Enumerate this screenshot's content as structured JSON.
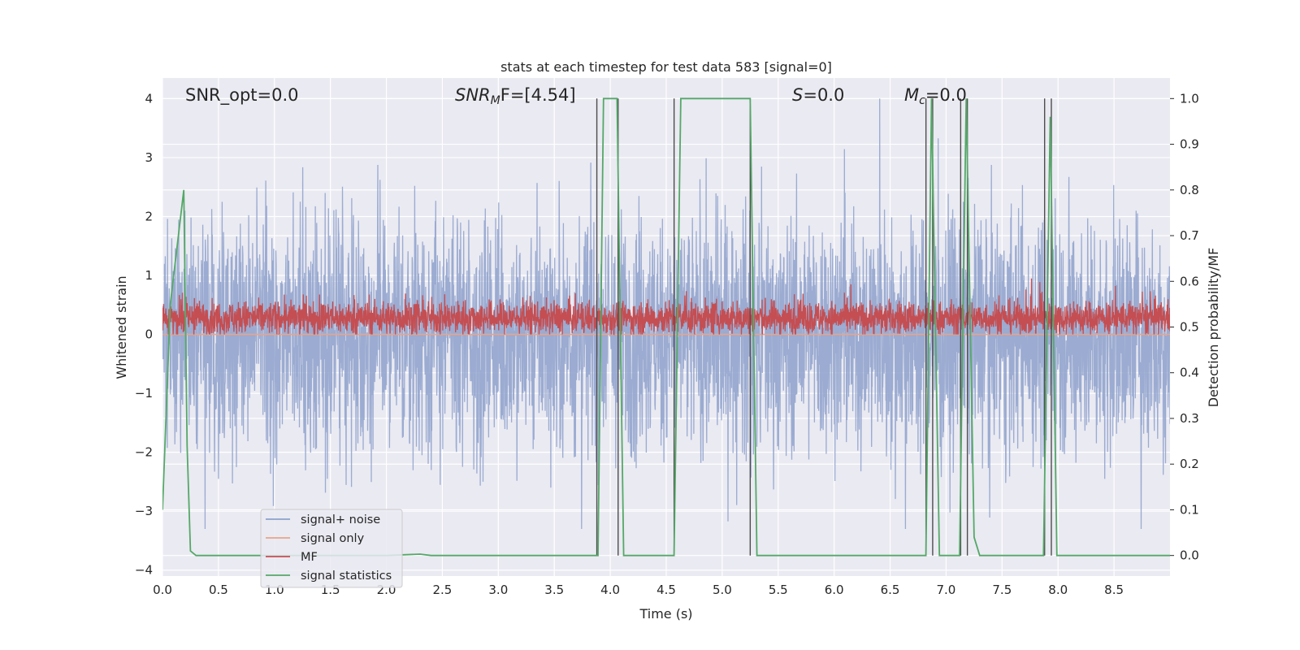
{
  "chart_data": {
    "type": "line",
    "title": "stats at each timestep for test data 583 [signal=0]",
    "xlabel": "Time (s)",
    "ylabel": "Whitened strain",
    "y2label": "Detection probability/MF",
    "xlim": [
      0,
      9
    ],
    "ylim": [
      -4.1,
      4.35
    ],
    "y2lim": [
      -0.045,
      1.045
    ],
    "grid": true,
    "legend_position": "lower-left",
    "x_ticks": [
      "0.0",
      "0.5",
      "1.0",
      "1.5",
      "2.0",
      "2.5",
      "3.0",
      "3.5",
      "4.0",
      "4.5",
      "5.0",
      "5.5",
      "6.0",
      "6.5",
      "7.0",
      "7.5",
      "8.0",
      "8.5"
    ],
    "y_ticks": [
      "−4",
      "−3",
      "−2",
      "−1",
      "0",
      "1",
      "2",
      "3",
      "4"
    ],
    "y2_ticks": [
      "0.0",
      "0.1",
      "0.2",
      "0.3",
      "0.4",
      "0.5",
      "0.6",
      "0.7",
      "0.8",
      "0.9",
      "1.0"
    ],
    "annotations": {
      "snr_opt": "SNR_opt=0.0",
      "snr_mf_main": "SNR",
      "snr_mf_sub": "M",
      "snr_mf_rest": "F=[4.54]",
      "s_main": "S",
      "s_rest": "=0.0",
      "mc_main": "M",
      "mc_sub": "c",
      "mc_rest": "=0.0"
    },
    "series": [
      {
        "name": "signal+ noise",
        "color": "#8da0cb",
        "kind": "noise",
        "y_range_approx": [
          -3.3,
          4.0
        ]
      },
      {
        "name": "signal only",
        "color": "#e8a48a",
        "kind": "constant",
        "y_value": 0.0
      },
      {
        "name": "MF",
        "color": "#c44e52",
        "kind": "noise",
        "y_range_approx": [
          0.0,
          0.95
        ]
      },
      {
        "name": "signal statistics",
        "color": "#55a868",
        "axis": "right",
        "x": [
          0.0,
          0.07,
          0.19,
          0.22,
          0.25,
          0.3,
          2.0,
          2.3,
          2.4,
          3.89,
          3.94,
          4.06,
          4.12,
          4.57,
          4.63,
          5.25,
          5.31,
          6.82,
          6.87,
          6.94,
          7.12,
          7.18,
          7.25,
          7.3,
          7.87,
          7.93,
          7.99,
          9.0
        ],
        "y": [
          0.1,
          0.55,
          0.8,
          0.24,
          0.01,
          0.0,
          0.0,
          0.003,
          0.0,
          0.0,
          1.0,
          1.0,
          0.0,
          0.0,
          1.0,
          1.0,
          0.0,
          0.0,
          1.0,
          0.0,
          0.0,
          1.0,
          0.04,
          0.0,
          0.0,
          0.96,
          0.0,
          0.0
        ]
      }
    ],
    "vertical_markers_x": [
      3.88,
      4.07,
      4.57,
      5.25,
      6.82,
      6.88,
      7.13,
      7.19,
      7.88,
      7.94
    ],
    "legend": [
      {
        "label": "signal+ noise",
        "color": "#8da0cb"
      },
      {
        "label": "signal only",
        "color": "#e8a48a"
      },
      {
        "label": "MF",
        "color": "#c44e52"
      },
      {
        "label": "signal statistics",
        "color": "#55a868"
      }
    ],
    "style": {
      "plot_bg": "#eaeaf2",
      "grid_color": "#ffffff",
      "marker_color": "#4d4d4d"
    }
  }
}
